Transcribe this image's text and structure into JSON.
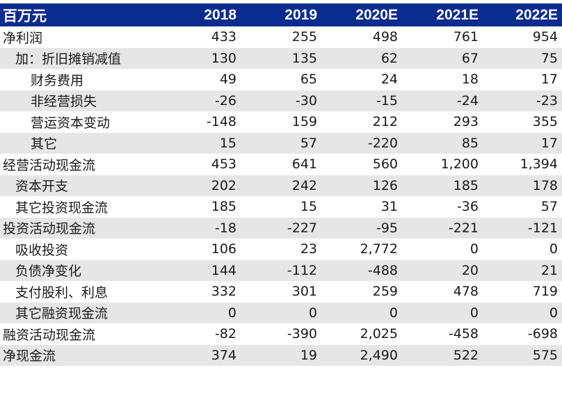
{
  "table": {
    "header": {
      "label": "百万元",
      "years": [
        "2018",
        "2019",
        "2020E",
        "2021E",
        "2022E"
      ]
    },
    "rows": [
      {
        "label": "净利润",
        "indent": 0,
        "shaded": false,
        "values": [
          "433",
          "255",
          "498",
          "761",
          "954"
        ]
      },
      {
        "label": "加：折旧摊销减值",
        "indent": 1,
        "shaded": true,
        "values": [
          "130",
          "135",
          "62",
          "67",
          "75"
        ]
      },
      {
        "label": "财务费用",
        "indent": 2,
        "shaded": false,
        "values": [
          "49",
          "65",
          "24",
          "18",
          "17"
        ]
      },
      {
        "label": "非经营损失",
        "indent": 2,
        "shaded": true,
        "values": [
          "-26",
          "-30",
          "-15",
          "-24",
          "-23"
        ]
      },
      {
        "label": "营运资本变动",
        "indent": 2,
        "shaded": false,
        "values": [
          "-148",
          "159",
          "212",
          "293",
          "355"
        ]
      },
      {
        "label": "其它",
        "indent": 2,
        "shaded": true,
        "values": [
          "15",
          "57",
          "-220",
          "85",
          "17"
        ]
      },
      {
        "label": "经营活动现金流",
        "indent": 0,
        "shaded": false,
        "values": [
          "453",
          "641",
          "560",
          "1,200",
          "1,394"
        ]
      },
      {
        "label": "资本开支",
        "indent": 1,
        "shaded": true,
        "values": [
          "202",
          "242",
          "126",
          "185",
          "178"
        ]
      },
      {
        "label": "其它投资现金流",
        "indent": 1,
        "shaded": false,
        "values": [
          "185",
          "15",
          "31",
          "-36",
          "57"
        ]
      },
      {
        "label": "投资活动现金流",
        "indent": 0,
        "shaded": true,
        "values": [
          "-18",
          "-227",
          "-95",
          "-221",
          "-121"
        ]
      },
      {
        "label": "吸收投资",
        "indent": 1,
        "shaded": false,
        "values": [
          "106",
          "23",
          "2,772",
          "0",
          "0"
        ]
      },
      {
        "label": "负债净变化",
        "indent": 1,
        "shaded": true,
        "values": [
          "144",
          "-112",
          "-488",
          "20",
          "21"
        ]
      },
      {
        "label": "支付股利、利息",
        "indent": 1,
        "shaded": false,
        "values": [
          "332",
          "301",
          "259",
          "478",
          "719"
        ]
      },
      {
        "label": "其它融资现金流",
        "indent": 1,
        "shaded": true,
        "values": [
          "0",
          "0",
          "0",
          "0",
          "0"
        ]
      },
      {
        "label": "融资活动现金流",
        "indent": 0,
        "shaded": false,
        "values": [
          "-82",
          "-390",
          "2,025",
          "-458",
          "-698"
        ]
      },
      {
        "label": "净现金流",
        "indent": 0,
        "shaded": true,
        "values": [
          "374",
          "19",
          "2,490",
          "522",
          "575"
        ]
      }
    ]
  }
}
